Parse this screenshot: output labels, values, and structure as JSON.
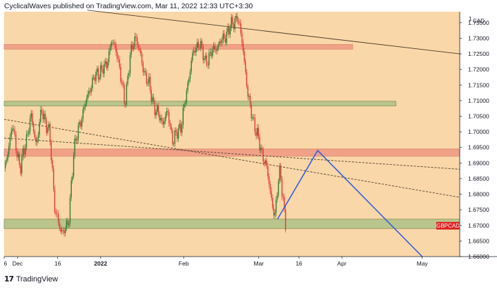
{
  "header": {
    "text": "CyclicalWaves published on TradingView.com, Mar 11, 2022 12:33 UTC+3:30"
  },
  "footer": {
    "logo": "17",
    "brand": "TradingView"
  },
  "colors": {
    "background": "#fad7a8",
    "up_candle": "#2e7d32",
    "down_candle": "#e53935",
    "resistance_zone": "#f19f87",
    "support_zone": "#b7c48c",
    "projection": "#2f5de0",
    "trendline": "#4a3b2a",
    "symbol_badge": "#e02020"
  },
  "chart_data": {
    "type": "line",
    "symbol": "GBPCAD",
    "currency_unit": "1",
    "currency": "CAD",
    "y_ticks": [
      "1.73500",
      "1.73000",
      "1.72500",
      "1.72000",
      "1.71500",
      "1.71000",
      "1.70500",
      "1.70000",
      "1.69500",
      "1.69000",
      "1.68500",
      "1.68000",
      "1.67500",
      "1.67000",
      "1.66500",
      "1.66000"
    ],
    "y_tick_values": [
      1.735,
      1.73,
      1.725,
      1.72,
      1.715,
      1.71,
      1.705,
      1.7,
      1.695,
      1.69,
      1.685,
      1.68,
      1.675,
      1.67,
      1.665,
      1.66
    ],
    "x_ticks": [
      "6",
      "Dec",
      "16",
      "2022",
      "Feb",
      "Mar",
      "16",
      "Apr",
      "May"
    ],
    "x_tick_dates": [
      "2021-11-26",
      "2021-12-01",
      "2021-12-16",
      "2022-01-01",
      "2022-02-01",
      "2022-03-01",
      "2022-03-16",
      "2022-04-01",
      "2022-05-01"
    ],
    "x_range": [
      "2021-11-26",
      "2022-05-15"
    ],
    "y_range": [
      1.66,
      1.7385
    ],
    "grid": false,
    "price_path": {
      "dates": [
        "2021-11-26",
        "2021-11-29",
        "2021-12-02",
        "2021-12-06",
        "2021-12-08",
        "2021-12-10",
        "2021-12-13",
        "2021-12-15",
        "2021-12-17",
        "2021-12-20",
        "2021-12-21",
        "2021-12-22",
        "2021-12-24",
        "2021-12-28",
        "2021-12-30",
        "2022-01-03",
        "2022-01-05",
        "2022-01-07",
        "2022-01-10",
        "2022-01-12",
        "2022-01-14",
        "2022-01-17",
        "2022-01-19",
        "2022-01-21",
        "2022-01-24",
        "2022-01-26",
        "2022-01-28",
        "2022-01-31",
        "2022-02-02",
        "2022-02-04",
        "2022-02-07",
        "2022-02-09",
        "2022-02-11",
        "2022-02-14",
        "2022-02-16",
        "2022-02-18",
        "2022-02-21",
        "2022-02-23",
        "2022-02-25",
        "2022-02-28",
        "2022-03-02",
        "2022-03-04",
        "2022-03-07",
        "2022-03-08",
        "2022-03-09",
        "2022-03-10",
        "2022-03-11"
      ],
      "closes": [
        1.687,
        1.702,
        1.688,
        1.705,
        1.696,
        1.707,
        1.699,
        1.675,
        1.668,
        1.67,
        1.683,
        1.694,
        1.702,
        1.714,
        1.718,
        1.721,
        1.729,
        1.726,
        1.709,
        1.724,
        1.731,
        1.72,
        1.715,
        1.708,
        1.703,
        1.706,
        1.697,
        1.702,
        1.712,
        1.724,
        1.729,
        1.722,
        1.725,
        1.728,
        1.73,
        1.733,
        1.737,
        1.728,
        1.711,
        1.7,
        1.694,
        1.688,
        1.672,
        1.682,
        1.689,
        1.678,
        1.67
      ]
    },
    "zones": [
      {
        "name": "resistance",
        "from": 1.7265,
        "to": 1.728
      },
      {
        "name": "mid-support",
        "from": 1.7083,
        "to": 1.7098
      },
      {
        "name": "resistance",
        "from": 1.6922,
        "to": 1.6945
      },
      {
        "name": "support",
        "from": 1.669,
        "to": 1.672
      }
    ],
    "trendlines": [
      {
        "style": "solid",
        "points": [
          [
            "2021-12-27",
            1.739
          ],
          [
            "2022-05-15",
            1.725
          ]
        ]
      },
      {
        "style": "dashed",
        "points": [
          [
            "2021-11-26",
            1.704
          ],
          [
            "2022-05-15",
            1.679
          ]
        ]
      },
      {
        "style": "dashed",
        "points": [
          [
            "2021-11-26",
            1.698
          ],
          [
            "2022-05-15",
            1.688
          ]
        ]
      }
    ],
    "projection": {
      "dates": [
        "2022-03-08",
        "2022-03-23",
        "2022-05-01"
      ],
      "values": [
        1.672,
        1.694,
        1.66
      ]
    }
  }
}
